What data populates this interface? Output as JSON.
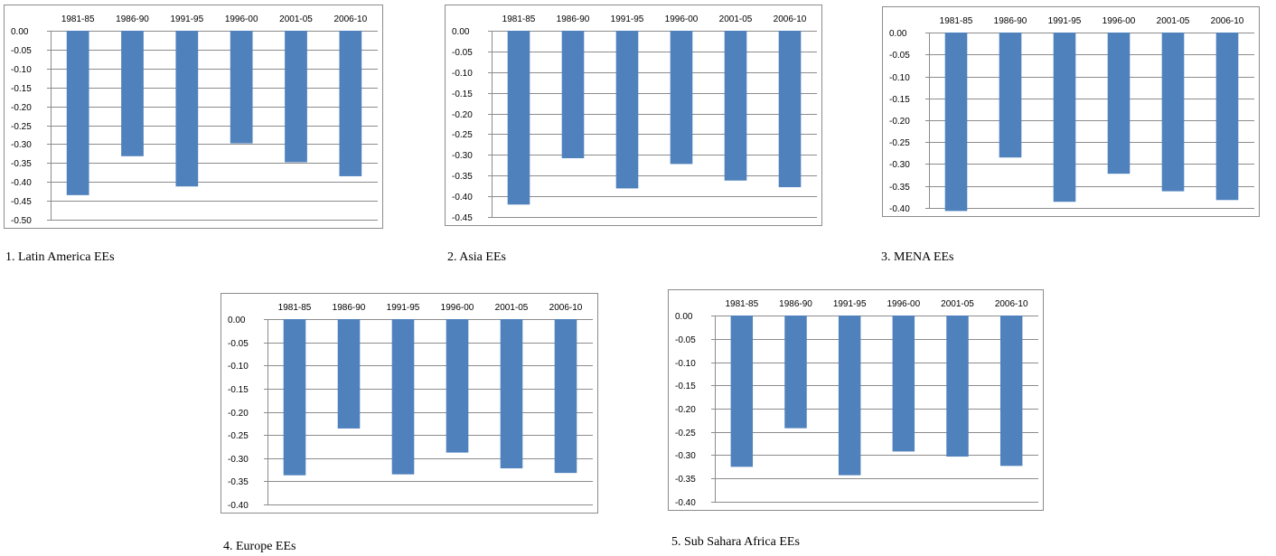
{
  "colors": {
    "bar": "#4F81BD",
    "grid": "#8C8C8C",
    "frame": "#8C8C8C",
    "text": "#000000"
  },
  "chart_data": [
    {
      "type": "bar",
      "caption": "1. Latin America EEs",
      "categories": [
        "1981-85",
        "1986-90",
        "1991-95",
        "1996-00",
        "2001-05",
        "2006-10"
      ],
      "values": [
        -0.435,
        -0.332,
        -0.412,
        -0.298,
        -0.348,
        -0.385
      ],
      "ylim": [
        -0.5,
        0.0
      ],
      "yticks": [
        "0.00",
        "-0.05",
        "-0.10",
        "-0.15",
        "-0.20",
        "-0.25",
        "-0.30",
        "-0.35",
        "-0.40",
        "-0.45",
        "-0.50"
      ],
      "grid": true
    },
    {
      "type": "bar",
      "caption": "2. Asia EEs",
      "categories": [
        "1981-85",
        "1986-90",
        "1991-95",
        "1996-00",
        "2001-05",
        "2006-10"
      ],
      "values": [
        -0.42,
        -0.308,
        -0.381,
        -0.322,
        -0.362,
        -0.378
      ],
      "ylim": [
        -0.45,
        0.0
      ],
      "yticks": [
        "0.00",
        "-0.05",
        "-0.10",
        "-0.15",
        "-0.20",
        "-0.25",
        "-0.30",
        "-0.35",
        "-0.40",
        "-0.45"
      ],
      "grid": true
    },
    {
      "type": "bar",
      "caption": "3. MENA EEs",
      "categories": [
        "1981-85",
        "1986-90",
        "1991-95",
        "1996-00",
        "2001-05",
        "2006-10"
      ],
      "values": [
        -0.407,
        -0.285,
        -0.386,
        -0.322,
        -0.362,
        -0.382
      ],
      "ylim": [
        -0.4,
        0.0
      ],
      "yticks": [
        "0.00",
        "-0.05",
        "-0.10",
        "-0.15",
        "-0.20",
        "-0.25",
        "-0.30",
        "-0.35",
        "-0.40"
      ],
      "grid": true
    },
    {
      "type": "bar",
      "caption": "4. Europe EEs",
      "categories": [
        "1981-85",
        "1986-90",
        "1991-95",
        "1996-00",
        "2001-05",
        "2006-10"
      ],
      "values": [
        -0.337,
        -0.236,
        -0.335,
        -0.288,
        -0.322,
        -0.332
      ],
      "ylim": [
        -0.4,
        0.0
      ],
      "yticks": [
        "0.00",
        "-0.05",
        "-0.10",
        "-0.15",
        "-0.20",
        "-0.25",
        "-0.30",
        "-0.35",
        "-0.40"
      ],
      "grid": true
    },
    {
      "type": "bar",
      "caption": "5. Sub Sahara Africa EEs",
      "categories": [
        "1981-85",
        "1986-90",
        "1991-95",
        "1996-00",
        "2001-05",
        "2006-10"
      ],
      "values": [
        -0.325,
        -0.242,
        -0.343,
        -0.292,
        -0.303,
        -0.323
      ],
      "ylim": [
        -0.4,
        0.0
      ],
      "yticks": [
        "0.00",
        "-0.05",
        "-0.10",
        "-0.15",
        "-0.20",
        "-0.25",
        "-0.30",
        "-0.35",
        "-0.40"
      ],
      "grid": true
    }
  ]
}
